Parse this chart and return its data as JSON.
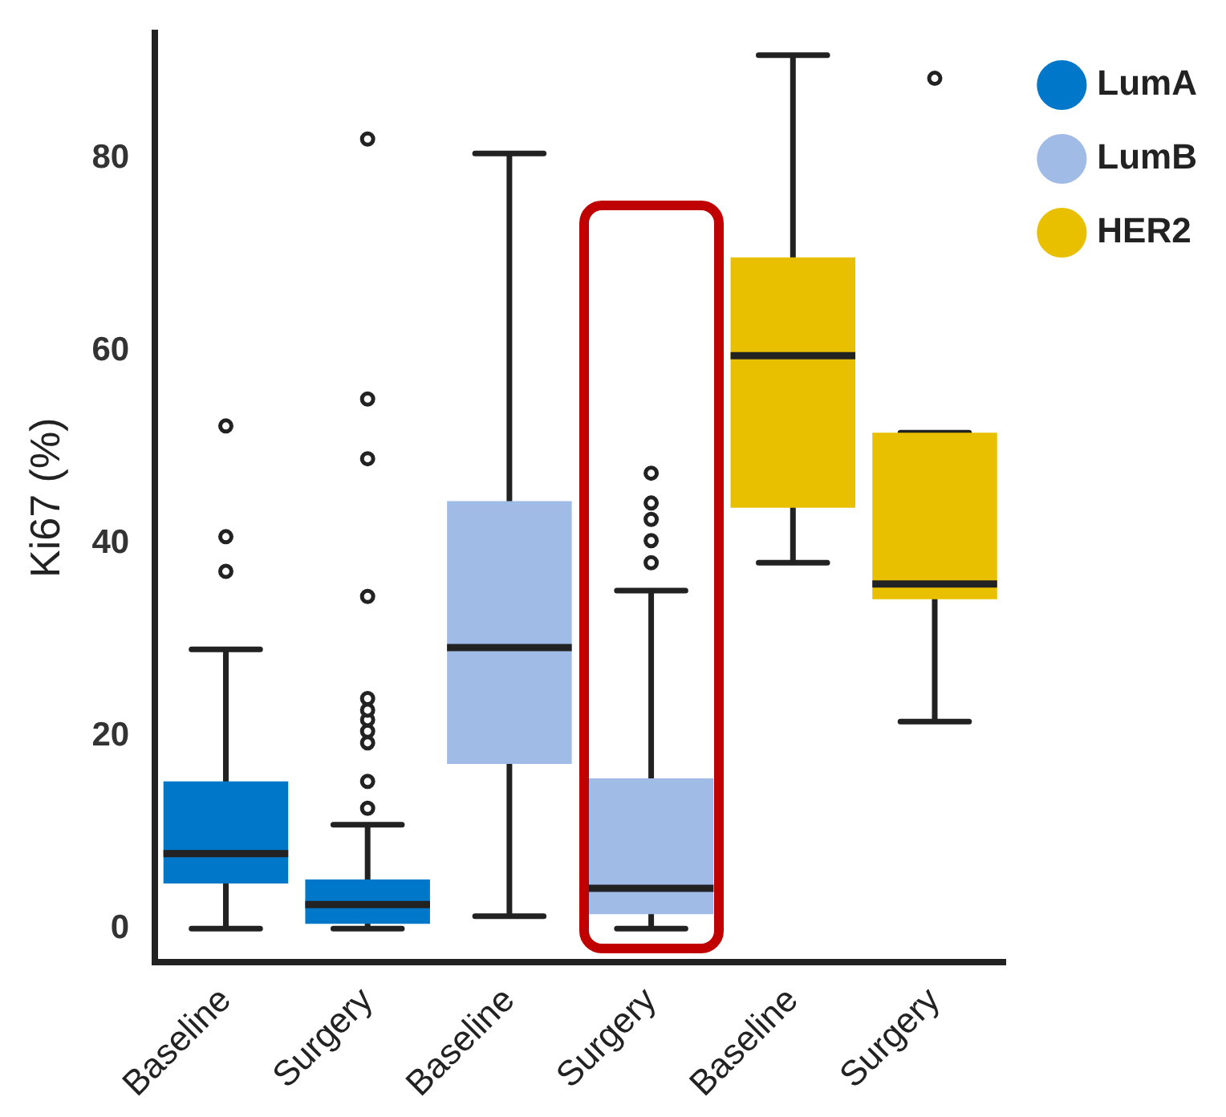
{
  "chart_data": {
    "type": "box",
    "ylabel": "Ki67 (%)",
    "categories": [
      "Baseline",
      "Surgery",
      "Baseline",
      "Surgery",
      "Baseline",
      "Surgery"
    ],
    "ylim": [
      -3.5,
      93
    ],
    "yticks": [
      0,
      20,
      40,
      60,
      80
    ],
    "grid": false,
    "legend": "top right",
    "series": [
      {
        "name": "LumA",
        "color": "#0077c8",
        "boxes": [
          {
            "low": 0,
            "q1": 4.7,
            "median": 7.8,
            "q3": 15.3,
            "high": 29,
            "outliers": [
              37.1,
              40.7,
              52.2
            ]
          },
          {
            "low": 0,
            "q1": 0.5,
            "median": 2.5,
            "q3": 5.1,
            "high": 10.8,
            "outliers": [
              12.5,
              15.3,
              19.3,
              20.5,
              21.7,
              22.7,
              23.9,
              34.5,
              48.8,
              55,
              82
            ]
          },
          null,
          null,
          null,
          null
        ]
      },
      {
        "name": "LumB",
        "color": "#a0bce6",
        "boxes": [
          null,
          null,
          {
            "low": 1.3,
            "q1": 17.1,
            "median": 29.2,
            "q3": 44.4,
            "high": 80.5
          },
          {
            "low": 0,
            "q1": 1.5,
            "median": 4.2,
            "q3": 15.6,
            "high": 35.1,
            "outliers": [
              38,
              40.3,
              42.5,
              44.2,
              47.3
            ]
          },
          null,
          null
        ]
      },
      {
        "name": "HER2",
        "color": "#e8c000",
        "boxes": [
          null,
          null,
          null,
          null,
          {
            "low": 38,
            "q1": 43.7,
            "median": 59.5,
            "q3": 69.7,
            "high": 90.7
          },
          {
            "low": 21.5,
            "q1": 34.2,
            "median": 35.8,
            "q3": 51.5,
            "high": 51.5,
            "outliers": [
              88.3
            ]
          }
        ]
      }
    ]
  }
}
